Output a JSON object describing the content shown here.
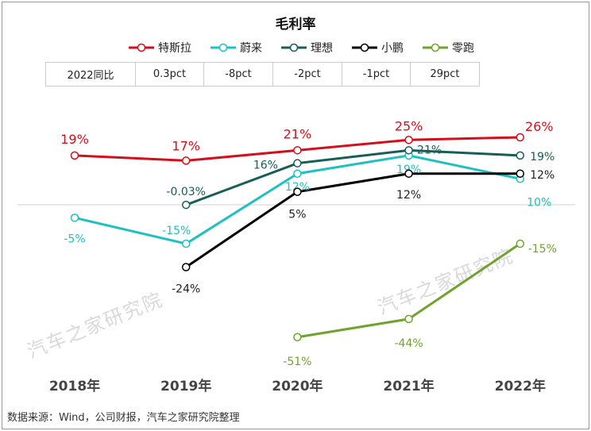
{
  "chart_data": {
    "type": "line",
    "title": "毛利率",
    "categories": [
      "2018年",
      "2019年",
      "2020年",
      "2021年",
      "2022年"
    ],
    "unit": "%",
    "series": [
      {
        "name": "特斯拉",
        "color": "#d40f1c",
        "values": [
          19,
          17,
          21,
          25,
          26
        ],
        "labels": [
          "19%",
          "17%",
          "21%",
          "25%",
          "26%"
        ]
      },
      {
        "name": "蔚来",
        "color": "#1fc0c0",
        "values": [
          -5,
          -15,
          12,
          19,
          10
        ],
        "labels": [
          "-5%",
          "-15%",
          "12%",
          "19%",
          "10%"
        ]
      },
      {
        "name": "理想",
        "color": "#175e56",
        "values": [
          null,
          -0.03,
          16,
          21,
          19
        ],
        "labels": [
          null,
          "-0.03%",
          "16%",
          "21%",
          "19%"
        ]
      },
      {
        "name": "小鹏",
        "color": "#000000",
        "values": [
          null,
          -24,
          5,
          12,
          12
        ],
        "labels": [
          null,
          "-24%",
          "5%",
          "12%",
          "12%"
        ]
      },
      {
        "name": "零跑",
        "color": "#6fa32e",
        "values": [
          null,
          null,
          -51,
          -44,
          -15
        ],
        "labels": [
          null,
          null,
          "-51%",
          "-44%",
          "-15%"
        ]
      }
    ],
    "legend": "top",
    "grid": false
  },
  "table": {
    "header": "2022同比",
    "cells": [
      "0.3pct",
      "-8pct",
      "-2pct",
      "-1pct",
      "29pct"
    ]
  },
  "watermark": "汽车之家研究院",
  "source": "数据来源：Wind，公司财报，汽车之家研究院整理"
}
